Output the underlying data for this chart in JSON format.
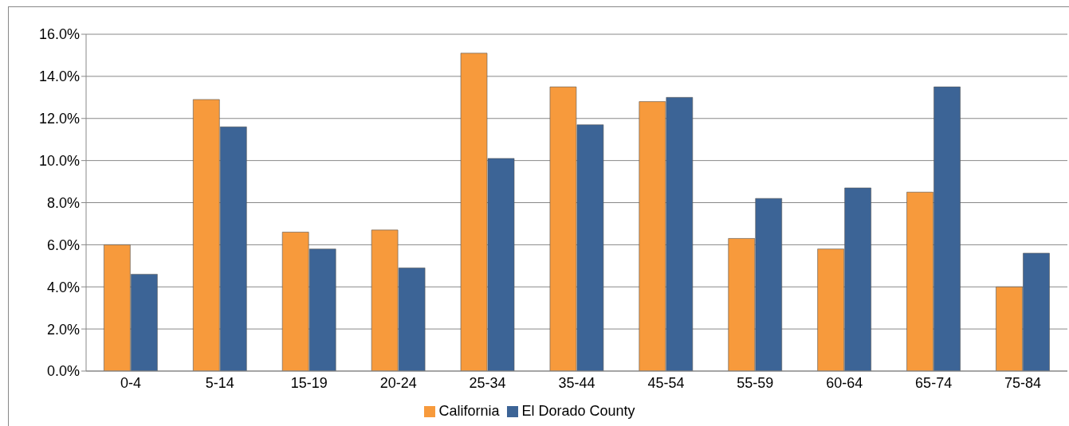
{
  "chart_data": {
    "type": "bar",
    "categories": [
      "0-4",
      "5-14",
      "15-19",
      "20-24",
      "25-34",
      "35-44",
      "45-54",
      "55-59",
      "60-64",
      "65-74",
      "75-84"
    ],
    "series": [
      {
        "name": "California",
        "color": "#f79a3c",
        "values": [
          6.0,
          12.9,
          6.6,
          6.7,
          15.1,
          13.5,
          12.8,
          6.3,
          5.8,
          8.5,
          4.0
        ]
      },
      {
        "name": "El Dorado County",
        "color": "#3c6496",
        "values": [
          4.6,
          11.6,
          5.8,
          4.9,
          10.1,
          11.7,
          13.0,
          8.2,
          8.7,
          13.5,
          5.6
        ]
      }
    ],
    "ylim": [
      0,
      16
    ],
    "yticks": [
      {
        "value": 0,
        "label": "0.0%"
      },
      {
        "value": 2,
        "label": "2.0%"
      },
      {
        "value": 4,
        "label": "4.0%"
      },
      {
        "value": 6,
        "label": "6.0%"
      },
      {
        "value": 8,
        "label": "8.0%"
      },
      {
        "value": 10,
        "label": "10.0%"
      },
      {
        "value": 12,
        "label": "12.0%"
      },
      {
        "value": 14,
        "label": "14.0%"
      },
      {
        "value": 16,
        "label": "16.0%"
      }
    ],
    "grid": "y",
    "legend": "bottom"
  }
}
